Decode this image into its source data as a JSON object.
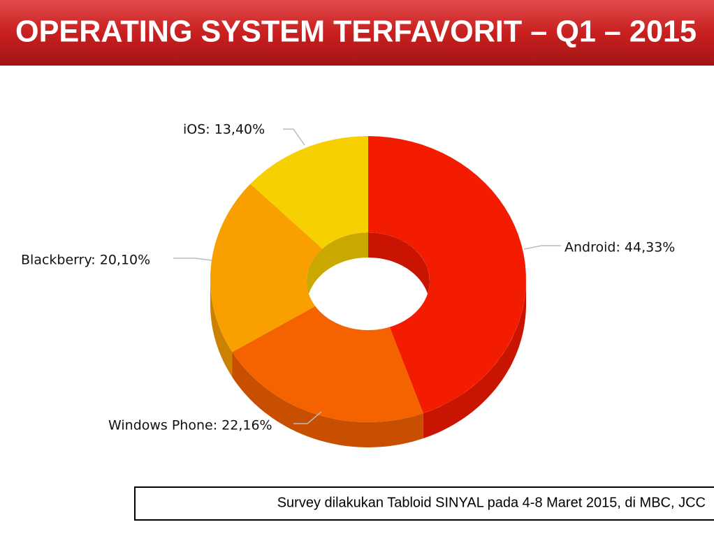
{
  "chart_data": {
    "type": "donut3d",
    "title": "OPERATING SYSTEM TERFAVORIT – Q1 – 2015",
    "values": [
      44.33,
      22.16,
      20.1,
      13.4
    ],
    "value_labels": [
      "Android: 44,33%",
      "Windows Phone: 22,16%",
      "Blackberry: 20,10%",
      "iOS: 13,40%"
    ],
    "colors": [
      "#f41c00",
      "#f56300",
      "#f9a000",
      "#f6d000"
    ],
    "side_colors": [
      "#c81400",
      "#c84e00",
      "#cc8200",
      "#c9a900"
    ],
    "note": "Survey dilakukan Tabloid SINYAL pada 4-8 Maret 2015, di MBC, JCC"
  }
}
